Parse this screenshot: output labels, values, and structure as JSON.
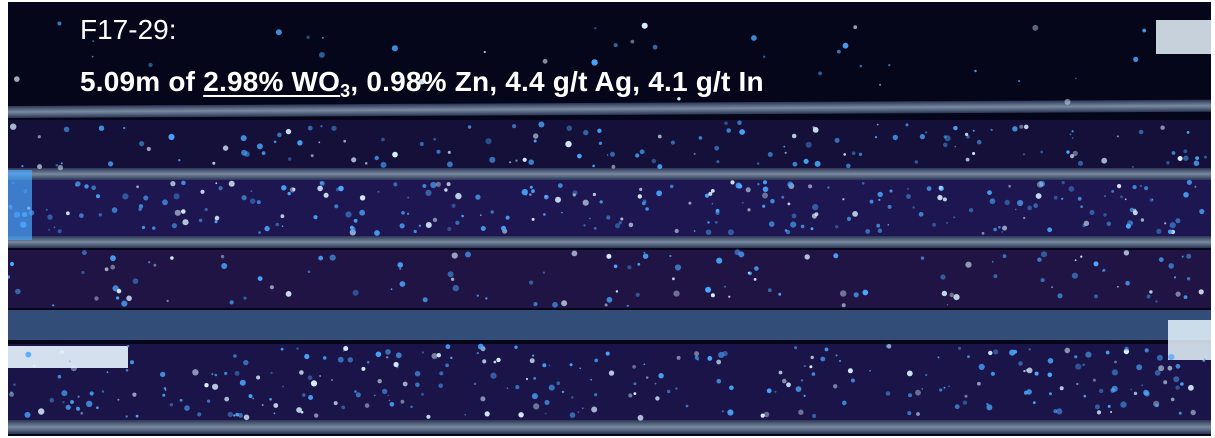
{
  "photo": {
    "description_name": "uv-fluorescent-drill-core",
    "colors": {
      "background": "#05061a",
      "core_dark": "#1a1340",
      "core_purple": "#3a2a6e",
      "tray_divider": "#7a8aa0",
      "fluorescence": "#4aa8ff",
      "fluorescence_bright": "#d8f0ff",
      "label_tag": "#e9f6ff"
    }
  },
  "caption": {
    "hole_id": "F17-29:",
    "interval": "5.09m of ",
    "wo3_value": "2.98% WO",
    "wo3_sub": "3",
    "rest": ", 0.98% Zn, 4.4 g/t Ag, 4.1 g/t In"
  }
}
